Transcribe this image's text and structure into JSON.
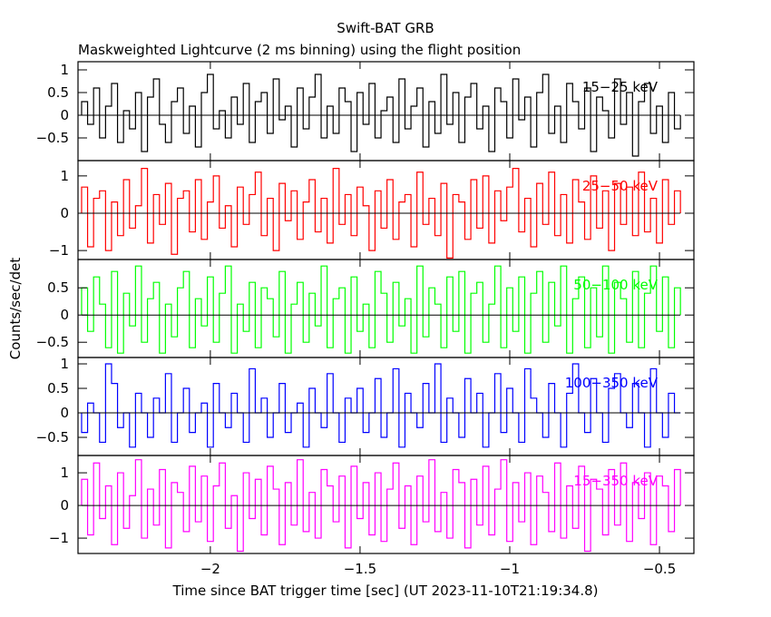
{
  "chart_data": {
    "type": "line",
    "title": "Swift-BAT GRB",
    "subtitle": "Maskweighted Lightcurve (2 ms binning) using the flight position",
    "xlabel": "Time since BAT trigger time [sec] (UT 2023-11-10T21:19:34.8)",
    "ylabel": "Counts/sec/det",
    "xlim": [
      -2.442,
      -0.385
    ],
    "x_start": -2.43,
    "bin_width": 0.02,
    "xticks": [
      {
        "v": -2,
        "label": "−2"
      },
      {
        "v": -1.5,
        "label": "−1.5"
      },
      {
        "v": -1,
        "label": "−1"
      },
      {
        "v": -0.5,
        "label": "−0.5"
      }
    ],
    "panels": [
      {
        "name": "15-25 keV",
        "label": "15−25 keV",
        "color": "#000000",
        "ylim": [
          -1.0,
          1.18
        ],
        "yticks": [
          {
            "v": 1,
            "label": "1"
          },
          {
            "v": 0.5,
            "label": "0.5"
          },
          {
            "v": 0,
            "label": "0"
          },
          {
            "v": -0.5,
            "label": "−0.5"
          }
        ],
        "values": [
          0.3,
          -0.2,
          0.6,
          -0.5,
          0.2,
          0.7,
          -0.6,
          0.1,
          -0.3,
          0.5,
          -0.8,
          0.4,
          0.8,
          -0.2,
          -0.6,
          0.3,
          0.6,
          -0.4,
          0.2,
          -0.7,
          0.5,
          0.9,
          -0.3,
          0.1,
          -0.5,
          0.4,
          -0.2,
          0.7,
          -0.6,
          0.3,
          0.5,
          -0.4,
          0.8,
          -0.1,
          0.2,
          -0.7,
          0.6,
          -0.3,
          0.4,
          0.9,
          -0.5,
          0.2,
          -0.4,
          0.6,
          0.3,
          -0.8,
          0.5,
          -0.2,
          0.7,
          -0.5,
          0.1,
          0.4,
          -0.6,
          0.8,
          -0.3,
          0.2,
          0.6,
          -0.7,
          0.3,
          -0.4,
          0.9,
          -0.2,
          0.5,
          -0.6,
          0.4,
          0.7,
          -0.3,
          0.2,
          -0.8,
          0.6,
          0.3,
          -0.5,
          0.8,
          -0.1,
          0.4,
          -0.7,
          0.5,
          0.9,
          -0.4,
          0.2,
          -0.6,
          0.7,
          0.3,
          -0.3,
          0.6,
          -0.8,
          0.4,
          0.1,
          -0.5,
          0.8,
          -0.2,
          0.5,
          -0.9,
          0.3,
          0.7,
          -0.4,
          0.2,
          -0.6,
          0.5,
          -0.3
        ]
      },
      {
        "name": "25-50 keV",
        "label": "25−50 keV",
        "color": "#ff0000",
        "ylim": [
          -1.24,
          1.41
        ],
        "yticks": [
          {
            "v": 1,
            "label": "1"
          },
          {
            "v": 0,
            "label": "0"
          },
          {
            "v": -1,
            "label": "−1"
          }
        ],
        "values": [
          0.7,
          -0.9,
          0.4,
          0.6,
          -1.0,
          0.3,
          -0.6,
          0.9,
          -0.4,
          0.2,
          1.2,
          -0.8,
          0.5,
          -0.3,
          0.8,
          -1.1,
          0.4,
          0.6,
          -0.5,
          0.9,
          -0.7,
          0.3,
          1.0,
          -0.4,
          0.2,
          -0.9,
          0.7,
          -0.3,
          0.5,
          1.1,
          -0.6,
          0.4,
          -1.0,
          0.8,
          -0.2,
          0.6,
          -0.7,
          0.3,
          0.9,
          -0.5,
          0.4,
          -0.8,
          1.2,
          -0.3,
          0.5,
          -0.6,
          0.7,
          0.2,
          -1.0,
          0.6,
          -0.4,
          0.9,
          -0.7,
          0.3,
          0.5,
          -0.9,
          1.1,
          -0.3,
          0.4,
          -0.6,
          0.8,
          -1.2,
          0.5,
          0.3,
          -0.7,
          0.9,
          -0.4,
          1.0,
          -0.8,
          0.6,
          -0.2,
          0.7,
          1.2,
          -0.5,
          0.4,
          -0.9,
          0.8,
          -0.3,
          1.1,
          -0.6,
          0.5,
          -0.8,
          0.9,
          0.3,
          -0.7,
          1.0,
          -0.4,
          0.6,
          -1.0,
          0.8,
          -0.3,
          0.7,
          -0.6,
          1.1,
          -0.5,
          0.4,
          -0.8,
          0.9,
          -0.3,
          0.6
        ]
      },
      {
        "name": "50-100 keV",
        "label": "50−100 keV",
        "color": "#00ff00",
        "ylim": [
          -0.78,
          1.02
        ],
        "yticks": [
          {
            "v": 0.5,
            "label": "0.5"
          },
          {
            "v": 0,
            "label": "0"
          },
          {
            "v": -0.5,
            "label": "−0.5"
          }
        ],
        "values": [
          0.5,
          -0.3,
          0.7,
          0.2,
          -0.6,
          0.8,
          -0.7,
          0.4,
          -0.2,
          0.9,
          -0.5,
          0.3,
          0.6,
          -0.7,
          0.2,
          -0.4,
          0.5,
          0.8,
          -0.6,
          0.3,
          -0.2,
          0.7,
          -0.5,
          0.4,
          0.9,
          -0.7,
          0.2,
          -0.3,
          0.6,
          -0.6,
          0.5,
          0.3,
          -0.4,
          0.8,
          -0.7,
          0.2,
          0.6,
          -0.5,
          0.4,
          -0.2,
          0.9,
          -0.6,
          0.3,
          0.5,
          -0.7,
          0.7,
          -0.3,
          0.2,
          -0.6,
          0.8,
          0.4,
          -0.5,
          0.6,
          -0.2,
          0.3,
          -0.7,
          0.9,
          -0.4,
          0.5,
          0.2,
          -0.6,
          0.7,
          -0.3,
          0.8,
          -0.7,
          0.4,
          0.6,
          -0.5,
          0.2,
          0.9,
          -0.6,
          0.5,
          -0.3,
          0.7,
          -0.7,
          0.4,
          0.8,
          -0.5,
          0.6,
          -0.2,
          0.9,
          -0.7,
          0.3,
          0.7,
          -0.6,
          0.5,
          -0.4,
          0.9,
          -0.7,
          0.6,
          0.3,
          -0.5,
          0.8,
          -0.6,
          0.4,
          0.9,
          -0.3,
          0.7,
          -0.6,
          0.5
        ]
      },
      {
        "name": "100-350 keV",
        "label": "100−350 keV",
        "color": "#0000ff",
        "ylim": [
          -0.87,
          1.13
        ],
        "yticks": [
          {
            "v": 1,
            "label": "1"
          },
          {
            "v": 0.5,
            "label": "0.5"
          },
          {
            "v": 0,
            "label": "0"
          },
          {
            "v": -0.5,
            "label": "−0.5"
          }
        ],
        "values": [
          -0.4,
          0.2,
          0,
          -0.6,
          1.0,
          0.6,
          -0.3,
          0,
          -0.7,
          0.4,
          0,
          -0.5,
          0.3,
          0,
          0.8,
          -0.6,
          0,
          0.5,
          -0.4,
          0,
          0.2,
          -0.7,
          0.6,
          0,
          -0.3,
          0.4,
          0,
          -0.6,
          0.9,
          0,
          0.3,
          -0.5,
          0,
          0.6,
          -0.4,
          0,
          0.2,
          -0.7,
          0.5,
          0,
          -0.3,
          0.8,
          0,
          -0.6,
          0.3,
          0,
          0.5,
          -0.4,
          0,
          0.7,
          -0.5,
          0,
          0.9,
          -0.7,
          0.4,
          0,
          -0.3,
          0.6,
          0,
          1.0,
          -0.6,
          0.3,
          0,
          -0.5,
          0.7,
          0,
          0.4,
          -0.7,
          0,
          0.8,
          -0.4,
          0.5,
          0,
          -0.6,
          0.9,
          0.3,
          0,
          -0.5,
          0.6,
          0,
          -0.7,
          0.4,
          1.0,
          0,
          -0.4,
          0.7,
          0,
          -0.6,
          0.5,
          0.8,
          0,
          -0.3,
          0.6,
          0,
          -0.7,
          0.9,
          0,
          -0.5,
          0.4,
          0
        ]
      },
      {
        "name": "15-350 keV",
        "label": "15−350 keV",
        "color": "#ff00ff",
        "ylim": [
          -1.47,
          1.53
        ],
        "yticks": [
          {
            "v": 1,
            "label": "1"
          },
          {
            "v": 0,
            "label": "0"
          },
          {
            "v": -1,
            "label": "−1"
          }
        ],
        "values": [
          0.8,
          -0.9,
          1.3,
          -0.4,
          0.6,
          -1.2,
          1.0,
          -0.7,
          0.3,
          1.4,
          -1.0,
          0.5,
          -0.6,
          1.1,
          -1.3,
          0.7,
          0.4,
          -0.8,
          1.2,
          -0.5,
          0.9,
          -1.1,
          0.6,
          1.3,
          -0.7,
          0.3,
          -1.4,
          1.0,
          -0.4,
          0.8,
          -0.9,
          1.2,
          0.5,
          -1.2,
          0.7,
          -0.6,
          1.4,
          -0.8,
          0.4,
          -1.0,
          1.1,
          0.6,
          -0.5,
          0.9,
          -1.3,
          1.2,
          -0.4,
          0.7,
          -0.9,
          1.0,
          -1.1,
          0.5,
          1.3,
          -0.7,
          0.6,
          -1.2,
          0.9,
          -0.5,
          1.4,
          -0.8,
          0.4,
          -1.0,
          1.1,
          0.7,
          -1.3,
          0.8,
          -0.6,
          1.2,
          -0.9,
          0.5,
          1.4,
          -1.1,
          0.7,
          -0.5,
          1.0,
          -1.2,
          0.9,
          0.4,
          -0.8,
          1.3,
          -1.0,
          0.6,
          -0.7,
          1.2,
          -1.4,
          0.8,
          0.5,
          -0.9,
          1.1,
          -0.6,
          1.3,
          -1.1,
          0.7,
          -0.4,
          1.0,
          -1.2,
          0.9,
          0.6,
          -0.8,
          1.1
        ]
      }
    ]
  }
}
